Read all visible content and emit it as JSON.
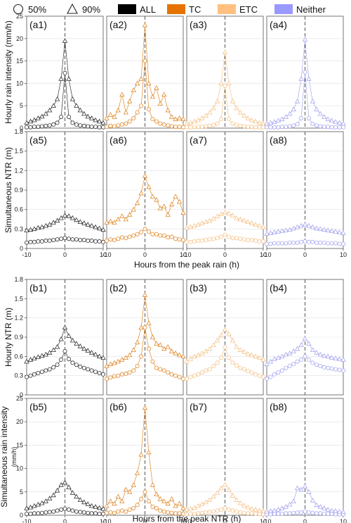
{
  "legend": {
    "items": [
      {
        "marker": "circle",
        "label": "50%"
      },
      {
        "marker": "triangle",
        "label": "90%"
      },
      {
        "swatch": "#000000",
        "label": "ALL"
      },
      {
        "swatch": "#e67300",
        "label": "TC"
      },
      {
        "swatch": "#ffc080",
        "label": "ETC"
      },
      {
        "swatch": "#9999ff",
        "label": "Neither"
      }
    ]
  },
  "chart_data": {
    "type": "line",
    "x": [
      -10,
      -9,
      -8,
      -7,
      -6,
      -5,
      -4,
      -3,
      -2,
      -1,
      0,
      1,
      2,
      3,
      4,
      5,
      6,
      7,
      8,
      9,
      10
    ],
    "groups": [
      {
        "name": "ALL",
        "color": "#333333"
      },
      {
        "name": "TC",
        "color": "#e08a2c"
      },
      {
        "name": "ETC",
        "color": "#f5c48c"
      },
      {
        "name": "Neither",
        "color": "#a8a8f0"
      }
    ],
    "rows": [
      {
        "ylabel": "Hourly rain intensity (mm/h)",
        "ylim": [
          0,
          25
        ],
        "yticks": [
          0,
          5,
          10,
          15,
          20,
          25
        ],
        "xticks": [],
        "panels": [
          {
            "label": "(a1)",
            "p50": [
              0.2,
              0.2,
              0.3,
              0.3,
              0.4,
              0.5,
              0.6,
              0.8,
              1.2,
              2.5,
              12.3,
              2.5,
              1.2,
              0.8,
              0.6,
              0.5,
              0.4,
              0.3,
              0.3,
              0.2,
              0.2
            ],
            "p90": [
              1.2,
              1.5,
              1.8,
              2.2,
              2.6,
              3.2,
              4.0,
              5.0,
              6.5,
              11.0,
              19.5,
              11.0,
              6.5,
              5.0,
              4.0,
              3.2,
              2.6,
              2.2,
              1.8,
              1.5,
              1.2
            ]
          },
          {
            "label": "(a2)",
            "p50": [
              0.3,
              0.5,
              0.4,
              0.6,
              0.8,
              1.0,
              1.5,
              2.2,
              3.5,
              5.0,
              15.0,
              4.2,
              2.0,
              1.5,
              1.0,
              0.8,
              0.6,
              0.4,
              0.3,
              0.3,
              0.2
            ],
            "p90": [
              2.2,
              3.0,
              2.5,
              4.0,
              7.5,
              3.5,
              6.0,
              8.5,
              10.0,
              11.0,
              23.0,
              10.0,
              7.0,
              9.0,
              5.5,
              7.5,
              4.0,
              2.5,
              2.0,
              2.2,
              2.0
            ]
          },
          {
            "label": "(a3)",
            "p50": [
              0.2,
              0.2,
              0.2,
              0.3,
              0.3,
              0.4,
              0.5,
              0.7,
              1.0,
              2.0,
              9.5,
              2.0,
              1.0,
              0.7,
              0.5,
              0.4,
              0.3,
              0.3,
              0.2,
              0.2,
              0.2
            ],
            "p90": [
              1.0,
              1.2,
              1.5,
              1.8,
              2.2,
              2.8,
              3.5,
              4.5,
              6.0,
              10.0,
              17.0,
              10.0,
              6.0,
              4.5,
              3.5,
              2.8,
              2.2,
              1.8,
              1.5,
              1.2,
              1.0
            ]
          },
          {
            "label": "(a4)",
            "p50": [
              0.2,
              0.2,
              0.2,
              0.2,
              0.3,
              0.3,
              0.4,
              0.6,
              0.9,
              2.2,
              12.5,
              2.2,
              0.9,
              0.6,
              0.4,
              0.3,
              0.3,
              0.2,
              0.2,
              0.2,
              0.2
            ],
            "p90": [
              1.0,
              1.2,
              1.4,
              1.7,
              2.0,
              2.5,
              3.2,
              4.2,
              6.0,
              11.0,
              19.8,
              11.0,
              6.0,
              4.2,
              3.2,
              2.5,
              2.0,
              1.7,
              1.4,
              1.2,
              1.0
            ]
          }
        ]
      },
      {
        "ylabel": "Simultaneous NTR (m)",
        "ylim": [
          0,
          1.8
        ],
        "yticks": [
          0,
          0.3,
          0.6,
          0.9,
          1.2,
          1.5,
          1.8
        ],
        "xticks": [
          -10,
          0,
          10
        ],
        "panels": [
          {
            "label": "(a5)",
            "p50": [
              0.09,
              0.1,
              0.1,
              0.11,
              0.11,
              0.12,
              0.12,
              0.13,
              0.14,
              0.15,
              0.16,
              0.15,
              0.14,
              0.14,
              0.13,
              0.13,
              0.12,
              0.12,
              0.11,
              0.11,
              0.1
            ],
            "p90": [
              0.28,
              0.29,
              0.3,
              0.32,
              0.33,
              0.35,
              0.37,
              0.4,
              0.43,
              0.47,
              0.51,
              0.5,
              0.47,
              0.44,
              0.41,
              0.39,
              0.37,
              0.35,
              0.33,
              0.31,
              0.29
            ]
          },
          {
            "label": "(a6)",
            "p50": [
              0.12,
              0.14,
              0.13,
              0.15,
              0.17,
              0.16,
              0.18,
              0.2,
              0.22,
              0.25,
              0.3,
              0.26,
              0.22,
              0.22,
              0.2,
              0.2,
              0.17,
              0.18,
              0.15,
              0.14,
              0.13
            ],
            "p90": [
              0.4,
              0.42,
              0.4,
              0.45,
              0.5,
              0.45,
              0.52,
              0.6,
              0.7,
              0.85,
              1.12,
              0.95,
              0.8,
              0.75,
              0.62,
              0.65,
              0.52,
              0.68,
              0.8,
              0.72,
              0.55
            ]
          },
          {
            "label": "(a7)",
            "p50": [
              0.1,
              0.1,
              0.11,
              0.12,
              0.12,
              0.13,
              0.14,
              0.15,
              0.16,
              0.18,
              0.21,
              0.18,
              0.16,
              0.16,
              0.15,
              0.14,
              0.13,
              0.13,
              0.12,
              0.11,
              0.11
            ],
            "p90": [
              0.32,
              0.33,
              0.35,
              0.37,
              0.39,
              0.41,
              0.43,
              0.46,
              0.5,
              0.53,
              0.56,
              0.54,
              0.51,
              0.47,
              0.45,
              0.43,
              0.41,
              0.39,
              0.37,
              0.35,
              0.33
            ]
          },
          {
            "label": "(a8)",
            "p50": [
              0.07,
              0.07,
              0.08,
              0.08,
              0.08,
              0.08,
              0.09,
              0.09,
              0.09,
              0.1,
              0.11,
              0.1,
              0.1,
              0.09,
              0.09,
              0.09,
              0.08,
              0.08,
              0.08,
              0.07,
              0.07
            ],
            "p90": [
              0.23,
              0.24,
              0.25,
              0.26,
              0.27,
              0.28,
              0.29,
              0.31,
              0.33,
              0.35,
              0.37,
              0.35,
              0.33,
              0.31,
              0.3,
              0.29,
              0.28,
              0.27,
              0.26,
              0.25,
              0.24
            ]
          }
        ]
      },
      {
        "ylabel": "Hourly NTR (m)",
        "ylim": [
          0,
          1.8
        ],
        "yticks": [
          0,
          0.3,
          0.6,
          0.9,
          1.2,
          1.5,
          1.8
        ],
        "xticks": [],
        "panels": [
          {
            "label": "(b1)",
            "p50": [
              0.28,
              0.3,
              0.32,
              0.34,
              0.36,
              0.38,
              0.4,
              0.43,
              0.47,
              0.55,
              0.68,
              0.56,
              0.5,
              0.47,
              0.44,
              0.42,
              0.4,
              0.38,
              0.36,
              0.34,
              0.32
            ],
            "p90": [
              0.52,
              0.55,
              0.57,
              0.59,
              0.61,
              0.63,
              0.66,
              0.7,
              0.75,
              0.87,
              1.05,
              0.92,
              0.85,
              0.8,
              0.76,
              0.72,
              0.69,
              0.66,
              0.63,
              0.6,
              0.58
            ]
          },
          {
            "label": "(b2)",
            "p50": [
              0.25,
              0.27,
              0.29,
              0.3,
              0.32,
              0.33,
              0.35,
              0.38,
              0.45,
              0.6,
              1.05,
              0.72,
              0.52,
              0.42,
              0.4,
              0.38,
              0.35,
              0.32,
              0.3,
              0.28,
              0.25
            ],
            "p90": [
              0.45,
              0.48,
              0.5,
              0.52,
              0.55,
              0.58,
              0.62,
              0.7,
              0.82,
              1.05,
              1.56,
              1.12,
              0.9,
              0.8,
              0.78,
              0.72,
              0.75,
              0.68,
              0.65,
              0.62,
              0.6
            ]
          },
          {
            "label": "(b3)",
            "p50": [
              0.25,
              0.28,
              0.3,
              0.32,
              0.35,
              0.38,
              0.4,
              0.45,
              0.5,
              0.58,
              0.74,
              0.58,
              0.5,
              0.46,
              0.42,
              0.4,
              0.37,
              0.35,
              0.32,
              0.3,
              0.28
            ],
            "p90": [
              0.52,
              0.56,
              0.6,
              0.62,
              0.65,
              0.68,
              0.72,
              0.78,
              0.85,
              0.93,
              1.02,
              0.95,
              0.85,
              0.75,
              0.7,
              0.67,
              0.64,
              0.62,
              0.6,
              0.58,
              0.55
            ]
          },
          {
            "label": "(b4)",
            "p50": [
              0.25,
              0.28,
              0.32,
              0.35,
              0.38,
              0.42,
              0.45,
              0.48,
              0.52,
              0.55,
              0.6,
              0.55,
              0.5,
              0.47,
              0.45,
              0.43,
              0.42,
              0.41,
              0.4,
              0.39,
              0.38
            ],
            "p90": [
              0.48,
              0.52,
              0.56,
              0.58,
              0.6,
              0.63,
              0.65,
              0.68,
              0.72,
              0.78,
              0.88,
              0.8,
              0.7,
              0.66,
              0.63,
              0.61,
              0.6,
              0.58,
              0.57,
              0.56,
              0.55
            ]
          }
        ]
      },
      {
        "ylabel": "Simultaneous rain intensity (mm/h)",
        "ylim": [
          0,
          25
        ],
        "yticks": [
          0,
          5,
          10,
          15,
          20,
          25
        ],
        "xticks": [
          -10,
          0,
          10
        ],
        "panels": [
          {
            "label": "(b5)",
            "p50": [
              0.3,
              0.3,
              0.4,
              0.4,
              0.5,
              0.6,
              0.7,
              0.8,
              1.0,
              1.2,
              1.4,
              1.2,
              1.0,
              0.8,
              0.7,
              0.6,
              0.5,
              0.4,
              0.4,
              0.3,
              0.3
            ],
            "p90": [
              1.5,
              1.7,
              2.0,
              2.3,
              2.6,
              3.0,
              3.6,
              4.3,
              5.3,
              6.5,
              7.0,
              6.0,
              4.8,
              4.0,
              3.3,
              2.8,
              2.4,
              2.0,
              1.8,
              1.6,
              1.4
            ]
          },
          {
            "label": "(b6)",
            "p50": [
              0.5,
              0.6,
              0.5,
              0.8,
              1.0,
              0.8,
              1.2,
              1.5,
              2.2,
              3.5,
              5.0,
              3.0,
              1.8,
              1.5,
              1.0,
              0.8,
              0.6,
              0.5,
              0.4,
              0.4,
              0.3
            ],
            "p90": [
              2.0,
              3.0,
              2.5,
              4.0,
              3.0,
              5.5,
              5.0,
              6.5,
              9.0,
              13.0,
              23.0,
              13.5,
              6.5,
              4.5,
              3.5,
              3.0,
              2.5,
              3.5,
              2.0,
              2.5,
              1.5
            ]
          },
          {
            "label": "(b7)",
            "p50": [
              0.2,
              0.3,
              0.3,
              0.4,
              0.5,
              0.6,
              0.7,
              0.8,
              1.0,
              1.2,
              1.5,
              1.2,
              1.0,
              0.8,
              0.6,
              0.5,
              0.4,
              0.4,
              0.3,
              0.3,
              0.2
            ],
            "p90": [
              1.2,
              1.4,
              1.6,
              2.0,
              2.4,
              2.8,
              3.3,
              4.0,
              4.8,
              5.8,
              6.6,
              5.5,
              4.2,
              3.3,
              2.6,
              2.1,
              1.7,
              1.4,
              1.2,
              1.0,
              0.9
            ]
          },
          {
            "label": "(b8)",
            "p50": [
              0.2,
              0.2,
              0.3,
              0.3,
              0.3,
              0.4,
              0.4,
              0.5,
              0.6,
              0.6,
              0.8,
              0.6,
              0.5,
              0.4,
              0.4,
              0.3,
              0.3,
              0.3,
              0.2,
              0.2,
              0.2
            ],
            "p90": [
              0.8,
              0.9,
              1.0,
              1.2,
              1.5,
              1.8,
              2.3,
              3.0,
              5.8,
              5.5,
              6.2,
              5.0,
              3.2,
              2.2,
              1.8,
              1.5,
              1.2,
              1.0,
              0.9,
              0.8,
              0.7
            ]
          }
        ]
      }
    ],
    "xlabels": [
      "Hours from the peak rain (h)",
      "Hours from the peak NTR (h)"
    ],
    "grid": true,
    "legend_position": "top"
  }
}
